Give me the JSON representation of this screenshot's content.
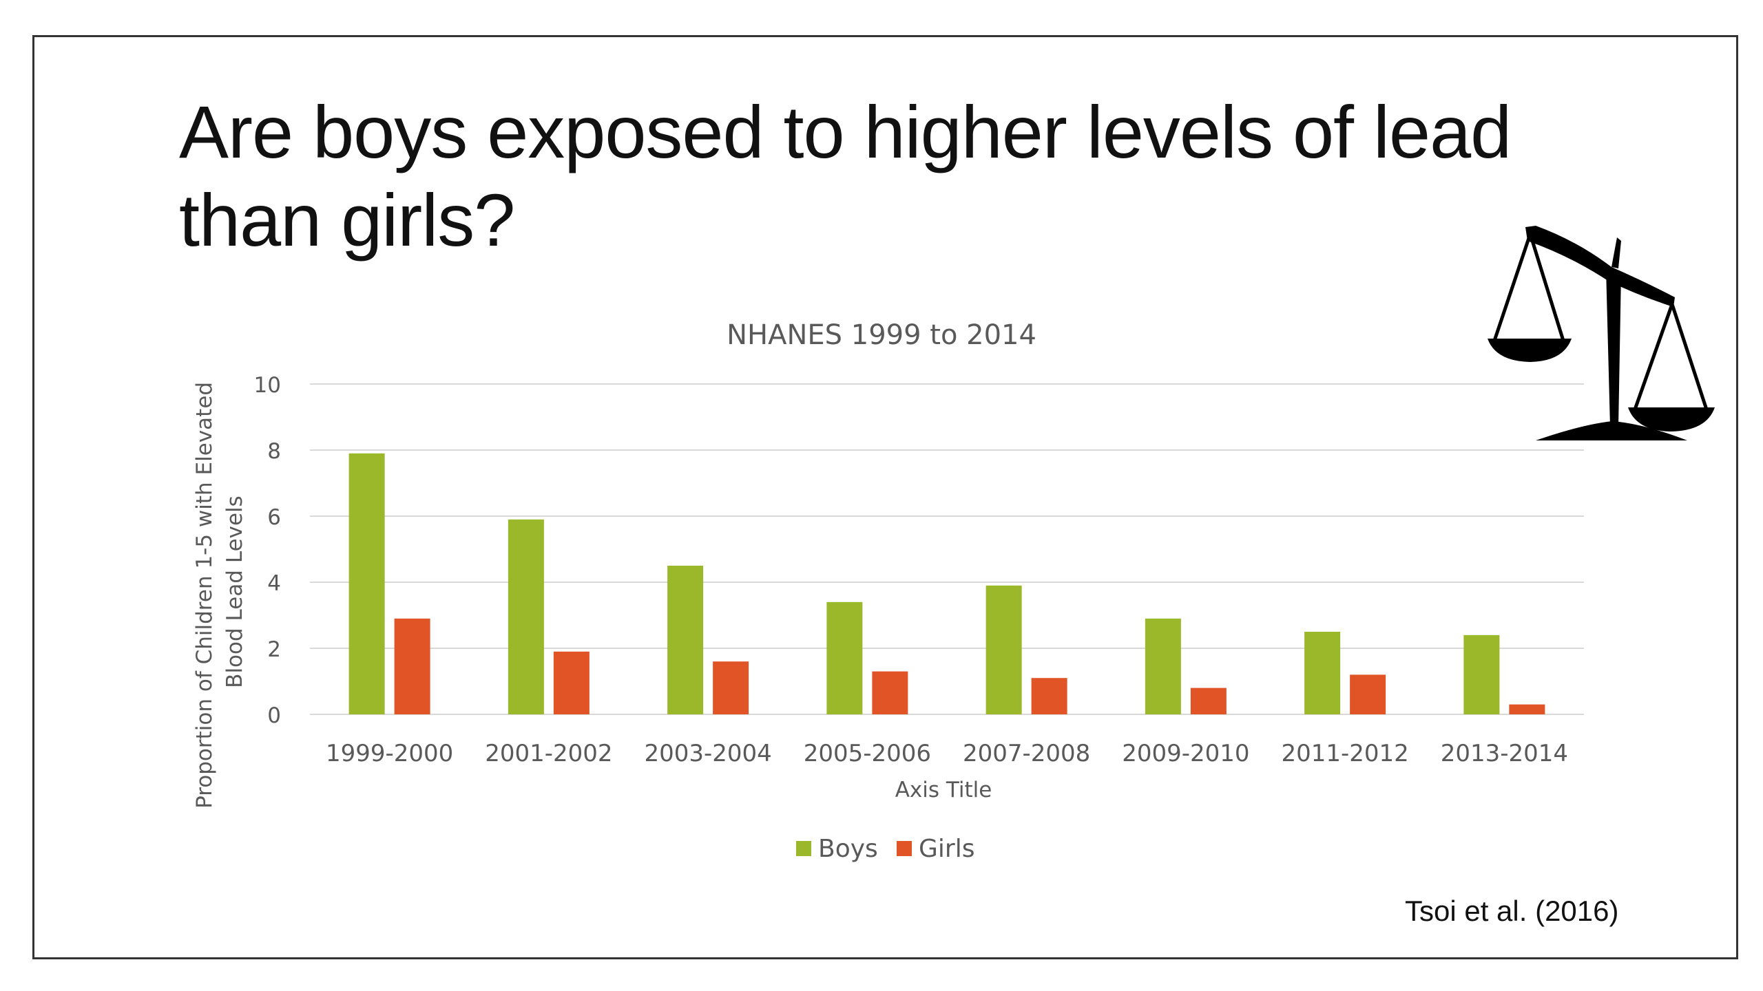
{
  "slide": {
    "title": "Are boys exposed to higher levels of lead than girls?",
    "citation": "Tsoi et al. (2016)",
    "icon": "balance-scale-icon"
  },
  "chart_data": {
    "type": "bar",
    "title": "NHANES 1999 to 2014",
    "xlabel": "Axis Title",
    "ylabel": "Proportion of Children 1-5 with Elevated Blood Lead Levels",
    "categories": [
      "1999-2000",
      "2001-2002",
      "2003-2004",
      "2005-2006",
      "2007-2008",
      "2009-2010",
      "2011-2012",
      "2013-2014"
    ],
    "series": [
      {
        "name": "Boys",
        "color": "#9bb82a",
        "values": [
          7.9,
          5.9,
          4.5,
          3.4,
          3.9,
          2.9,
          2.5,
          2.4
        ]
      },
      {
        "name": "Girls",
        "color": "#e05426",
        "values": [
          2.9,
          1.9,
          1.6,
          1.3,
          1.1,
          0.8,
          1.2,
          0.3
        ]
      }
    ],
    "yticks": [
      0,
      2,
      4,
      6,
      8,
      10
    ],
    "ylim": [
      0,
      10
    ],
    "grid": true,
    "legend": "bottom"
  }
}
